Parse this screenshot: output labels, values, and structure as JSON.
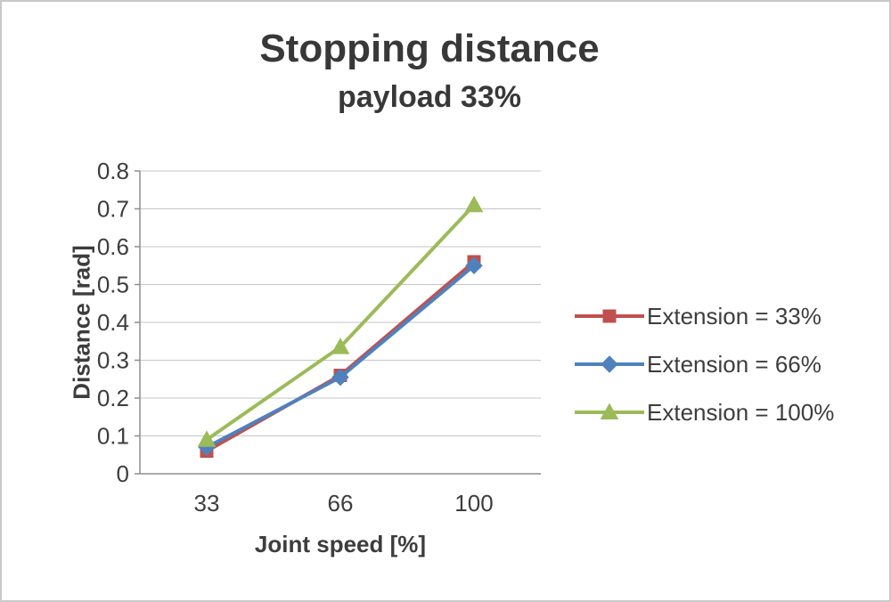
{
  "chart_data": {
    "type": "line",
    "title": "Stopping distance",
    "subtitle": "payload 33%",
    "xlabel": "Joint speed [%]",
    "ylabel": "Distance [rad]",
    "categories": [
      "33",
      "66",
      "100"
    ],
    "series": [
      {
        "name": "Extension = 33%",
        "color": "#c0504d",
        "marker": "square",
        "values": [
          0.06,
          0.26,
          0.56
        ]
      },
      {
        "name": "Extension = 66%",
        "color": "#4f81bd",
        "marker": "diamond",
        "values": [
          0.07,
          0.255,
          0.55
        ]
      },
      {
        "name": "Extension = 100%",
        "color": "#9bbb59",
        "marker": "triangle",
        "values": [
          0.09,
          0.335,
          0.71
        ]
      }
    ],
    "ylim": [
      0,
      0.8
    ],
    "yticks": [
      0,
      0.1,
      0.2,
      0.3,
      0.4,
      0.5,
      0.6,
      0.7,
      0.8
    ],
    "grid": "horizontal",
    "legend_position": "right"
  },
  "colors": {
    "text": "#3d3d3d",
    "grid": "#c6c6c6",
    "axis": "#8e8e8e",
    "background": "#ffffff"
  }
}
